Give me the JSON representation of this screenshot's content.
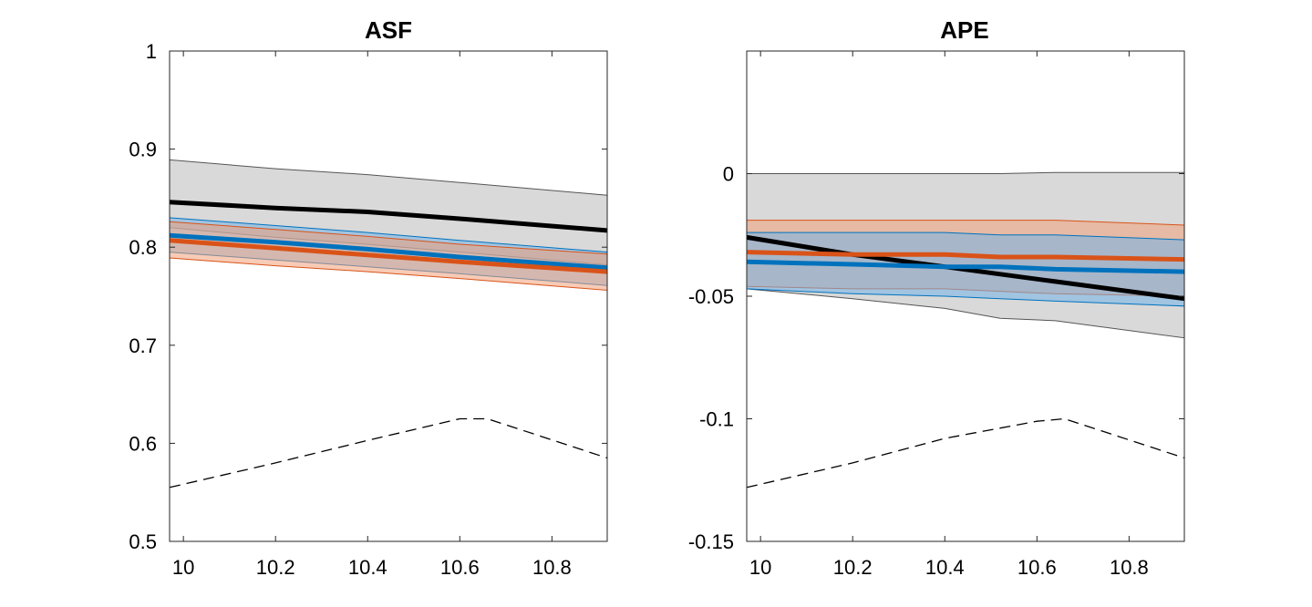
{
  "colors": {
    "black": "#000000",
    "blue": "#0072BD",
    "orange": "#D95319",
    "gray_band": "#d9d9d9",
    "gray_band_edge": "#555555",
    "blue_band": "#72b2e8",
    "orange_band": "#f0a07a"
  },
  "chart_data": [
    {
      "type": "line",
      "title": "ASF",
      "xlim": [
        9.97,
        10.92
      ],
      "ylim": [
        0.5,
        1.0
      ],
      "xticks": [
        "10",
        "10.2",
        "10.4",
        "10.6",
        "10.8"
      ],
      "xtick_values": [
        10,
        10.2,
        10.4,
        10.6,
        10.8
      ],
      "yticks": [
        "0.5",
        "0.6",
        "0.7",
        "0.8",
        "0.9",
        "1"
      ],
      "ytick_values": [
        0.5,
        0.6,
        0.7,
        0.8,
        0.9,
        1.0
      ],
      "x": [
        9.97,
        10.2,
        10.4,
        10.6,
        10.92
      ],
      "bands": [
        {
          "color": "gray",
          "upper": [
            0.889,
            0.88,
            0.874,
            0.866,
            0.853
          ],
          "lower": [
            0.82,
            0.81,
            0.803,
            0.795,
            0.782
          ]
        },
        {
          "color": "blue",
          "upper": [
            0.83,
            0.822,
            0.815,
            0.807,
            0.795
          ],
          "lower": [
            0.795,
            0.787,
            0.78,
            0.773,
            0.761
          ]
        },
        {
          "color": "orange",
          "upper": [
            0.826,
            0.818,
            0.811,
            0.803,
            0.793
          ],
          "lower": [
            0.789,
            0.781,
            0.775,
            0.768,
            0.756
          ]
        }
      ],
      "series": [
        {
          "color": "black",
          "values": [
            0.846,
            0.84,
            0.836,
            0.829,
            0.817
          ]
        },
        {
          "color": "blue",
          "values": [
            0.812,
            0.805,
            0.798,
            0.79,
            0.779
          ]
        },
        {
          "color": "orange",
          "values": [
            0.807,
            0.799,
            0.792,
            0.785,
            0.775
          ]
        }
      ],
      "dashed": {
        "x": [
          9.97,
          10.2,
          10.4,
          10.6,
          10.66,
          10.92
        ],
        "values": [
          0.555,
          0.58,
          0.603,
          0.625,
          0.625,
          0.585
        ]
      }
    },
    {
      "type": "line",
      "title": "APE",
      "xlim": [
        9.97,
        10.92
      ],
      "ylim": [
        -0.15,
        0.05
      ],
      "xticks": [
        "10",
        "10.2",
        "10.4",
        "10.6",
        "10.8"
      ],
      "xtick_values": [
        10,
        10.2,
        10.4,
        10.6,
        10.8
      ],
      "yticks": [
        "-0.15",
        "-0.1",
        "-0.05",
        "0"
      ],
      "ytick_values": [
        -0.15,
        -0.1,
        -0.05,
        0
      ],
      "x": [
        9.97,
        10.2,
        10.4,
        10.52,
        10.64,
        10.92
      ],
      "bands": [
        {
          "color": "gray",
          "upper": [
            0.0,
            0.0,
            0.0,
            0.0,
            0.0005,
            0.0005
          ],
          "lower": [
            -0.047,
            -0.051,
            -0.055,
            -0.059,
            -0.06,
            -0.067
          ]
        },
        {
          "color": "orange",
          "upper": [
            -0.019,
            -0.019,
            -0.019,
            -0.019,
            -0.019,
            -0.021
          ],
          "lower": [
            -0.046,
            -0.047,
            -0.047,
            -0.048,
            -0.049,
            -0.05
          ]
        },
        {
          "color": "blue",
          "upper": [
            -0.024,
            -0.024,
            -0.024,
            -0.025,
            -0.025,
            -0.027
          ],
          "lower": [
            -0.047,
            -0.049,
            -0.05,
            -0.051,
            -0.052,
            -0.054
          ]
        }
      ],
      "series": [
        {
          "color": "black",
          "values": [
            -0.026,
            -0.033,
            -0.038,
            -0.041,
            -0.044,
            -0.051
          ]
        },
        {
          "color": "orange",
          "values": [
            -0.032,
            -0.033,
            -0.033,
            -0.034,
            -0.034,
            -0.035
          ]
        },
        {
          "color": "blue",
          "values": [
            -0.036,
            -0.037,
            -0.038,
            -0.038,
            -0.039,
            -0.04
          ]
        }
      ],
      "dashed": {
        "x": [
          9.97,
          10.2,
          10.4,
          10.6,
          10.66,
          10.92
        ],
        "values": [
          -0.128,
          -0.118,
          -0.108,
          -0.101,
          -0.1,
          -0.116
        ]
      }
    }
  ]
}
